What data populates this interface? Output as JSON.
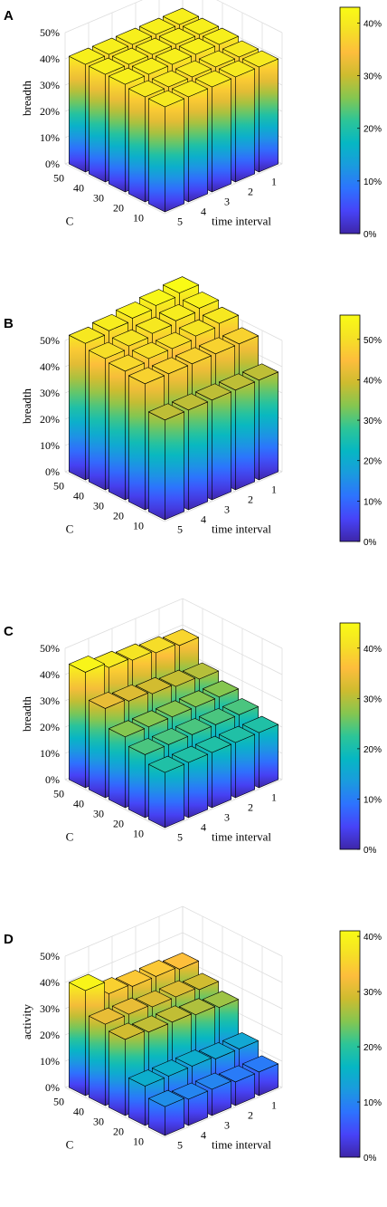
{
  "colormap": [
    "#3e26a8",
    "#4743f8",
    "#2d73fe",
    "#1a9bde",
    "#06b7c3",
    "#2dc597",
    "#85c650",
    "#cdbc2f",
    "#fdbd3c",
    "#f5e125",
    "#f9fb15"
  ],
  "chart_data": [
    {
      "type": "bar3d",
      "panel": "A",
      "zlabel": "breadth",
      "xlabel": "time interval",
      "ylabel": "C",
      "x_categories": [
        "1",
        "2",
        "3",
        "4",
        "5"
      ],
      "y_categories": [
        "10",
        "20",
        "30",
        "40",
        "50"
      ],
      "zticks": [
        "0%",
        "10%",
        "20%",
        "30%",
        "40%",
        "50%"
      ],
      "zlim": [
        0,
        50
      ],
      "colorbar": {
        "ticks": [
          "0%",
          "10%",
          "20%",
          "30%",
          "40%"
        ],
        "max": 43
      },
      "values": [
        [
          40,
          40,
          40,
          40,
          40
        ],
        [
          40,
          40,
          40,
          40,
          40
        ],
        [
          41,
          41,
          41,
          41,
          41
        ],
        [
          41,
          41,
          41,
          41,
          41
        ],
        [
          41,
          41,
          41,
          41,
          41
        ]
      ]
    },
    {
      "type": "bar3d",
      "panel": "B",
      "zlabel": "breadth",
      "xlabel": "time interval",
      "ylabel": "C",
      "x_categories": [
        "1",
        "2",
        "3",
        "4",
        "5"
      ],
      "y_categories": [
        "10",
        "20",
        "30",
        "40",
        "50"
      ],
      "zticks": [
        "0%",
        "10%",
        "20%",
        "30%",
        "40%",
        "50%"
      ],
      "zlim": [
        0,
        50
      ],
      "colorbar": {
        "ticks": [
          "0%",
          "10%",
          "20%",
          "30%",
          "40%",
          "50%"
        ],
        "max": 56
      },
      "values": [
        [
          38,
          38,
          38,
          38,
          38
        ],
        [
          48,
          48,
          48,
          48,
          48
        ],
        [
          52,
          51,
          50,
          50,
          49
        ],
        [
          54,
          53,
          52,
          51,
          50
        ],
        [
          56,
          55,
          54,
          53,
          52
        ]
      ]
    },
    {
      "type": "bar3d",
      "panel": "C",
      "zlabel": "breadth",
      "xlabel": "time interval",
      "ylabel": "C",
      "x_categories": [
        "1",
        "2",
        "3",
        "4",
        "5"
      ],
      "y_categories": [
        "10",
        "20",
        "30",
        "40",
        "50"
      ],
      "zticks": [
        "0%",
        "10%",
        "20%",
        "30%",
        "40%",
        "50%"
      ],
      "zlim": [
        0,
        50
      ],
      "colorbar": {
        "ticks": [
          "0%",
          "10%",
          "20%",
          "30%",
          "40%"
        ],
        "max": 45
      },
      "values": [
        [
          21,
          21,
          21,
          21,
          21
        ],
        [
          24,
          24,
          24,
          24,
          24
        ],
        [
          27,
          27,
          27,
          27,
          27
        ],
        [
          30,
          31,
          32,
          33,
          34
        ],
        [
          39,
          40,
          41,
          42,
          44
        ]
      ]
    },
    {
      "type": "bar3d",
      "panel": "D",
      "zlabel": "activity",
      "xlabel": "time interval",
      "ylabel": "C",
      "x_categories": [
        "1",
        "2",
        "3",
        "4",
        "5"
      ],
      "y_categories": [
        "10",
        "20",
        "30",
        "40",
        "50"
      ],
      "zticks": [
        "0%",
        "10%",
        "20%",
        "30%",
        "40%",
        "50%"
      ],
      "zlim": [
        0,
        50
      ],
      "colorbar": {
        "ticks": [
          "0%",
          "10%",
          "20%",
          "30%",
          "40%"
        ],
        "max": 41
      },
      "values": [
        [
          9,
          9,
          10,
          10,
          11
        ],
        [
          14,
          14,
          15,
          15,
          15
        ],
        [
          26,
          27,
          28,
          28,
          29
        ],
        [
          29,
          30,
          30,
          31,
          31
        ],
        [
          33,
          34,
          34,
          35,
          40
        ]
      ]
    }
  ]
}
